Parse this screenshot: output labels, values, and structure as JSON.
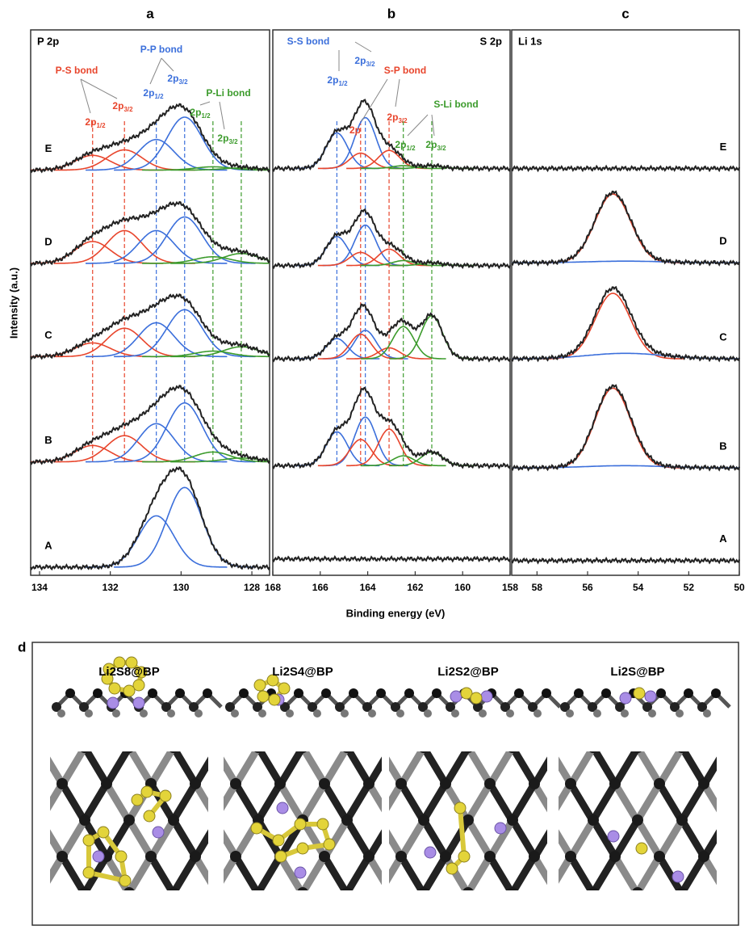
{
  "figure": {
    "y_label": "Intensity (a.u.)",
    "x_label": "Binding energy (eV)"
  },
  "chart_data": [
    {
      "type": "line",
      "panel": "a",
      "element": "P 2p",
      "xlim": [
        134.25,
        127.5
      ],
      "xticks": [
        134,
        132,
        130,
        128
      ],
      "ylim": [
        0,
        100
      ],
      "components": [
        {
          "center": 132.5,
          "width": 0.5,
          "color": "#e8452c",
          "guide": true
        },
        {
          "center": 131.6,
          "width": 0.5,
          "color": "#e8452c",
          "guide": true
        },
        {
          "center": 130.7,
          "width": 0.5,
          "color": "#3b6fdb",
          "guide": true
        },
        {
          "center": 129.9,
          "width": 0.5,
          "color": "#3b6fdb",
          "guide": true
        },
        {
          "center": 129.1,
          "width": 0.5,
          "color": "#3c9b2c",
          "guide": true
        },
        {
          "center": 128.3,
          "width": 0.5,
          "color": "#3c9b2c",
          "guide": true
        }
      ],
      "spectra": [
        {
          "label": "E",
          "baseline": 74.3,
          "heights": [
            2.7,
            3.7,
            5.6,
            9.7,
            0.6,
            0.4
          ]
        },
        {
          "label": "D",
          "baseline": 57.2,
          "heights": [
            4.0,
            6.0,
            6.0,
            8.5,
            1.2,
            1.8
          ]
        },
        {
          "label": "C",
          "baseline": 40.1,
          "heights": [
            2.5,
            5.2,
            6.2,
            8.6,
            1.0,
            1.8
          ]
        },
        {
          "label": "B",
          "baseline": 20.8,
          "heights": [
            3.0,
            4.8,
            7.0,
            10.8,
            1.8,
            0.7
          ]
        },
        {
          "label": "A",
          "baseline": 1.5,
          "heights": [
            0,
            0,
            9.4,
            14.6,
            0,
            0
          ]
        }
      ],
      "annotations": [
        {
          "text": "P-S bond",
          "color": "#e8452c"
        },
        {
          "text": "2p",
          "sub": "1/2",
          "color": "#e8452c"
        },
        {
          "text": "2p",
          "sub": "3/2",
          "color": "#e8452c"
        },
        {
          "text": "P-P bond",
          "color": "#3b6fdb"
        },
        {
          "text": "2p",
          "sub": "1/2",
          "color": "#3b6fdb"
        },
        {
          "text": "2p",
          "sub": "3/2",
          "color": "#3b6fdb"
        },
        {
          "text": "P-Li bond",
          "color": "#3c9b2c"
        },
        {
          "text": "2p",
          "sub": "1/2",
          "color": "#3c9b2c"
        },
        {
          "text": "2p",
          "sub": "3/2",
          "color": "#3c9b2c"
        }
      ]
    },
    {
      "type": "line",
      "panel": "b",
      "element": "S 2p",
      "xlim": [
        168,
        158
      ],
      "xticks": [
        168,
        166,
        164,
        162,
        160,
        158
      ],
      "ylim": [
        0,
        100
      ],
      "components": [
        {
          "center": 165.3,
          "width": 0.45,
          "color": "#3b6fdb",
          "guide": true
        },
        {
          "center": 164.1,
          "width": 0.45,
          "color": "#3b6fdb",
          "guide": true
        },
        {
          "center": 164.3,
          "width": 0.45,
          "color": "#e8452c",
          "guide": true
        },
        {
          "center": 163.1,
          "width": 0.45,
          "color": "#e8452c",
          "guide": true
        },
        {
          "center": 162.5,
          "width": 0.45,
          "color": "#3c9b2c",
          "guide": true
        },
        {
          "center": 161.3,
          "width": 0.45,
          "color": "#3c9b2c",
          "guide": true
        }
      ],
      "spectra": [
        {
          "baseline": 74.6,
          "heights": [
            6.5,
            9.3,
            2.8,
            3.3,
            0.5,
            0.5
          ]
        },
        {
          "baseline": 56.8,
          "heights": [
            5.3,
            7.4,
            2.4,
            3.0,
            0.9,
            0.5
          ]
        },
        {
          "baseline": 39.7,
          "heights": [
            3.7,
            5.2,
            4.5,
            2.0,
            5.9,
            7.9
          ]
        },
        {
          "baseline": 20.1,
          "heights": [
            6.2,
            8.9,
            4.8,
            6.7,
            1.8,
            2.5
          ]
        },
        {
          "baseline": 3.0,
          "heights": [
            0,
            0,
            0,
            0,
            0,
            0
          ]
        }
      ],
      "annotations": [
        {
          "text": "S-S bond",
          "color": "#3b6fdb"
        },
        {
          "text": "2p",
          "sub": "1/2",
          "color": "#3b6fdb"
        },
        {
          "text": "2p",
          "sub": "3/2",
          "color": "#3b6fdb"
        },
        {
          "text": "S-P bond",
          "color": "#e8452c"
        },
        {
          "text": "2p",
          "color": "#e8452c"
        },
        {
          "text": "2p",
          "sub": "3/2",
          "color": "#e8452c"
        },
        {
          "text": "S-Li bond",
          "color": "#3c9b2c"
        },
        {
          "text": "2p",
          "sub": "1/2",
          "color": "#3c9b2c"
        },
        {
          "text": "2p",
          "sub": "3/2",
          "color": "#3c9b2c"
        }
      ]
    },
    {
      "type": "line",
      "panel": "c",
      "element": "Li 1s",
      "xlim": [
        59,
        50
      ],
      "xticks": [
        58,
        56,
        54,
        52,
        50
      ],
      "ylim": [
        0,
        100
      ],
      "components": [
        {
          "center": 55.0,
          "width": 0.7,
          "color": "#e8452c",
          "guide": false
        },
        {
          "center": 54.5,
          "width": 1.5,
          "color": "#3b6fdb",
          "guide": false
        }
      ],
      "spectra": [
        {
          "label": "E",
          "baseline": 74.6,
          "heights": [
            0,
            0
          ]
        },
        {
          "label": "D",
          "baseline": 57.3,
          "heights": [
            12.6,
            0.3
          ]
        },
        {
          "label": "C",
          "baseline": 39.7,
          "heights": [
            12.0,
            1.0
          ]
        },
        {
          "label": "B",
          "baseline": 19.7,
          "heights": [
            14.6,
            0.4
          ]
        },
        {
          "label": "A",
          "baseline": 2.7,
          "heights": [
            0,
            0
          ]
        }
      ],
      "annotations": []
    }
  ],
  "panel_d": {
    "label": "d",
    "structures": [
      "Li2S8@BP",
      "Li2S4@BP",
      "Li2S2@BP",
      "Li2S@BP"
    ]
  }
}
